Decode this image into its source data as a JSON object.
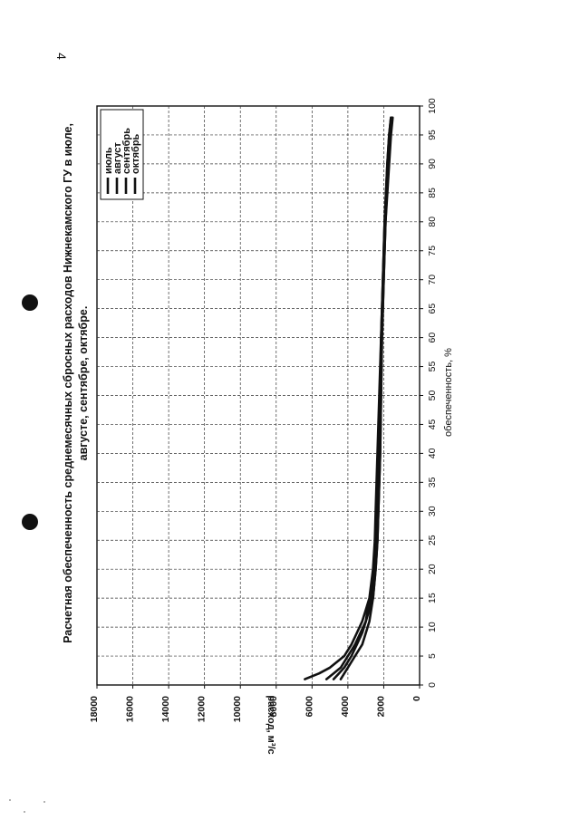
{
  "page": {
    "number": "4"
  },
  "chart_data": {
    "type": "line",
    "title_line1": "Расчетная обеспеченность среднемесячных сбросных расходов Нижнекамского ГУ в июле,",
    "title_line2": "августе, сентябре, октябре.",
    "xlabel": "обеспеченность, %",
    "ylabel": "расход, м³/с",
    "xlim": [
      0,
      100
    ],
    "ylim": [
      0,
      18000
    ],
    "x_ticks": [
      0,
      5,
      10,
      15,
      20,
      25,
      30,
      35,
      40,
      45,
      50,
      55,
      60,
      65,
      70,
      75,
      80,
      85,
      90,
      95,
      100
    ],
    "y_ticks": [
      0,
      2000,
      4000,
      6000,
      8000,
      10000,
      12000,
      14000,
      16000,
      18000
    ],
    "grid": true,
    "legend_position": "top-left",
    "line_color": "#111111",
    "series": [
      {
        "name": "июль",
        "x": [
          1,
          2,
          3,
          5,
          7,
          9,
          11,
          13,
          15,
          20,
          25,
          30,
          35,
          40,
          50,
          60,
          70,
          80,
          90,
          95,
          98
        ],
        "y": [
          6400,
          5600,
          5000,
          4200,
          3800,
          3500,
          3200,
          3000,
          2800,
          2600,
          2500,
          2450,
          2400,
          2350,
          2250,
          2150,
          2050,
          1950,
          1800,
          1700,
          1600
        ]
      },
      {
        "name": "август",
        "x": [
          1,
          2,
          3,
          5,
          7,
          9,
          11,
          13,
          15,
          20,
          25,
          30,
          35,
          40,
          50,
          60,
          70,
          80,
          90,
          95,
          98
        ],
        "y": [
          5200,
          4800,
          4400,
          4000,
          3600,
          3300,
          3000,
          2800,
          2600,
          2450,
          2350,
          2300,
          2250,
          2200,
          2150,
          2100,
          2000,
          1900,
          1750,
          1650,
          1550
        ]
      },
      {
        "name": "сентябрь",
        "x": [
          1,
          2,
          3,
          5,
          7,
          9,
          11,
          13,
          15,
          20,
          25,
          30,
          35,
          40,
          50,
          60,
          70,
          80,
          90,
          95,
          98
        ],
        "y": [
          4800,
          4500,
          4200,
          3800,
          3500,
          3200,
          3000,
          2900,
          2700,
          2500,
          2400,
          2350,
          2300,
          2250,
          2200,
          2150,
          2050,
          1950,
          1800,
          1700,
          1600
        ]
      },
      {
        "name": "октябрь",
        "x": [
          1,
          2,
          3,
          5,
          7,
          9,
          11,
          13,
          15,
          20,
          25,
          30,
          35,
          40,
          50,
          60,
          70,
          80,
          90,
          95,
          98
        ],
        "y": [
          4400,
          4200,
          4000,
          3600,
          3200,
          3000,
          2800,
          2700,
          2600,
          2450,
          2350,
          2300,
          2250,
          2200,
          2150,
          2100,
          2000,
          1900,
          1700,
          1600,
          1500
        ]
      }
    ]
  }
}
